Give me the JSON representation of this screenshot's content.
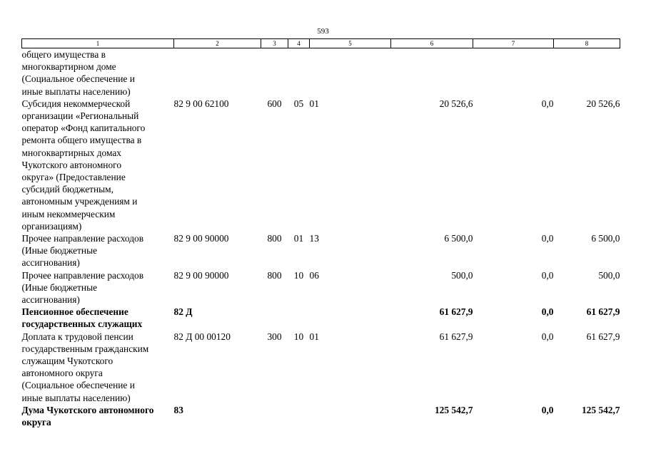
{
  "page_number": "593",
  "header": [
    "1",
    "2",
    "3",
    "4",
    "5",
    "6",
    "7",
    "8"
  ],
  "rows": [
    {
      "desc": "общего имущества в\nмногоквартирном доме\n(Социальное обеспечение и\nиные выплаты населению)",
      "code": "",
      "c3": "",
      "c4": "",
      "c5": "",
      "c6": "",
      "c7": "",
      "c8": "",
      "bold": false
    },
    {
      "desc": "Субсидия некоммерческой\nорганизации «Региональный\nоператор «Фонд капитального\nремонта общего имущества в\nмногоквартирных домах\nЧукотского автономного\nокруга» (Предоставление\nсубсидий бюджетным,\nавтономным учреждениям и\nиным некоммерческим\nорганизациям)",
      "code": "82 9 00 62100",
      "c3": "600",
      "c4": "05",
      "c5": "01",
      "c6": "20 526,6",
      "c7": "0,0",
      "c8": "20 526,6",
      "bold": false
    },
    {
      "desc": "Прочее направление расходов\n(Иные бюджетные\nассигнования)",
      "code": "82 9 00 90000",
      "c3": "800",
      "c4": "01",
      "c5": "13",
      "c6": "6 500,0",
      "c7": "0,0",
      "c8": "6 500,0",
      "bold": false
    },
    {
      "desc": "Прочее направление расходов\n(Иные бюджетные\nассигнования)",
      "code": "82 9 00 90000",
      "c3": "800",
      "c4": "10",
      "c5": "06",
      "c6": "500,0",
      "c7": "0,0",
      "c8": "500,0",
      "bold": false
    },
    {
      "desc": "Пенсионное обеспечение\nгосударственных служащих",
      "code": "82 Д",
      "c3": "",
      "c4": "",
      "c5": "",
      "c6": "61 627,9",
      "c7": "0,0",
      "c8": "61 627,9",
      "bold": true
    },
    {
      "desc": "Доплата к трудовой пенсии\nгосударственным гражданским\nслужащим Чукотского\nавтономного округа\n(Социальное обеспечение и\nиные выплаты населению)",
      "code": "82 Д 00 00120",
      "c3": "300",
      "c4": "10",
      "c5": "01",
      "c6": "61 627,9",
      "c7": "0,0",
      "c8": "61 627,9",
      "bold": false
    },
    {
      "desc": "Дума Чукотского автономного\nокруга",
      "code": "83",
      "c3": "",
      "c4": "",
      "c5": "",
      "c6": "125 542,7",
      "c7": "0,0",
      "c8": "125 542,7",
      "bold": true
    }
  ]
}
